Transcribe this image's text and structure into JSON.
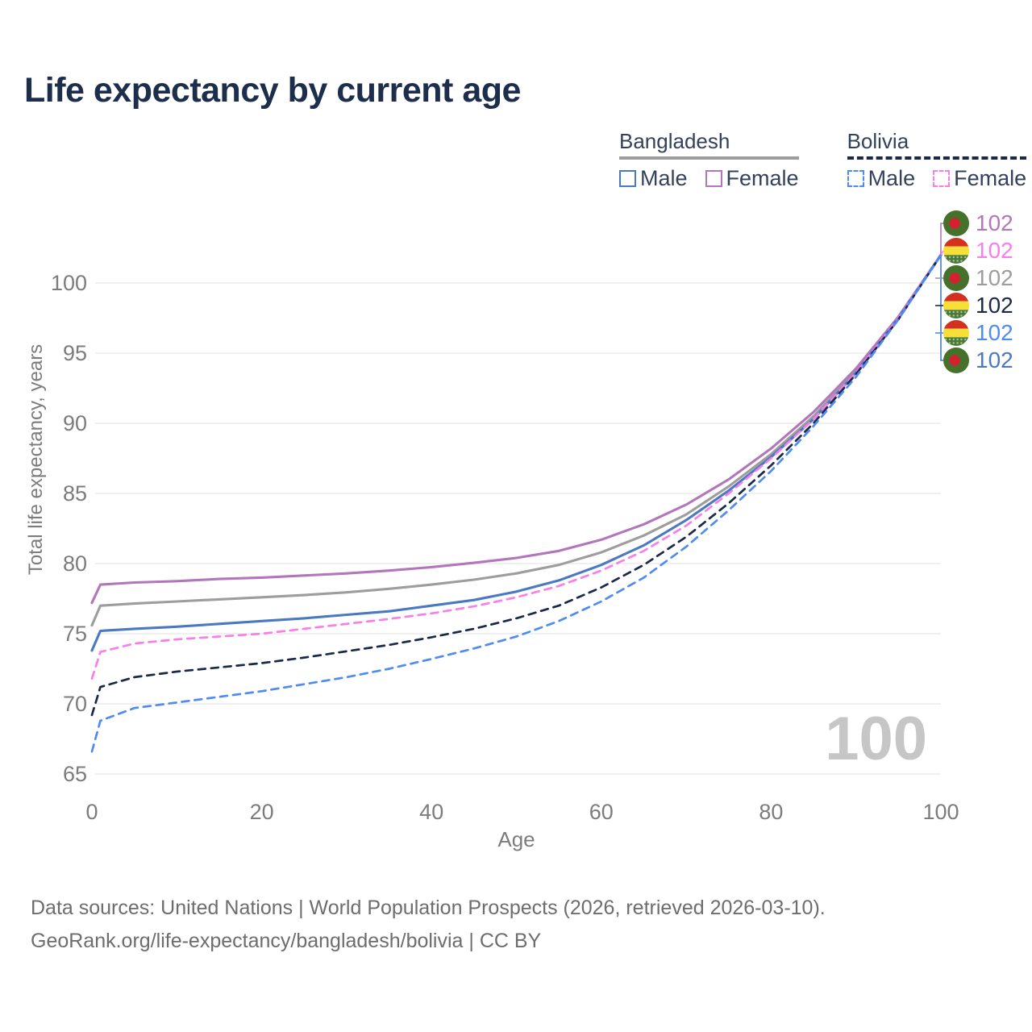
{
  "page": {
    "title": "Life expectancy by current age",
    "footer_line1": "Data sources: United Nations | World Population Prospects (2026, retrieved 2026-03-10).",
    "footer_line2": "GeoRank.org/life-expectancy/bangladesh/bolivia | CC BY"
  },
  "watermark": "100",
  "legend": {
    "groups": [
      {
        "label": "Bangladesh",
        "line_style": "solid",
        "line_color": "#9d9d9d",
        "items": [
          {
            "label": "Male",
            "color": "#4a79c2",
            "style": "solid"
          },
          {
            "label": "Female",
            "color": "#b376bc",
            "style": "solid"
          }
        ]
      },
      {
        "label": "Bolivia",
        "line_style": "dashed",
        "line_color": "#1a2947",
        "items": [
          {
            "label": "Male",
            "color": "#4e8cf2",
            "style": "dashed"
          },
          {
            "label": "Female",
            "color": "#f97ee9",
            "style": "dashed"
          }
        ]
      }
    ]
  },
  "chart_data": {
    "type": "line",
    "title": "Life expectancy by current age",
    "xlabel": "Age",
    "ylabel": "Total life expectancy, years",
    "xlim": [
      0,
      100
    ],
    "ylim": [
      65,
      102
    ],
    "xticks": [
      0,
      20,
      40,
      60,
      80,
      100
    ],
    "yticks": [
      65,
      70,
      75,
      80,
      85,
      90,
      95,
      100
    ],
    "grid": "horizontal-only",
    "legend_position": "top-right",
    "ages": [
      0,
      1,
      5,
      10,
      15,
      20,
      25,
      30,
      35,
      40,
      45,
      50,
      55,
      60,
      65,
      70,
      75,
      80,
      85,
      90,
      95,
      100
    ],
    "series": [
      {
        "name": "Bangladesh Female",
        "country": "Bangladesh",
        "sex": "Female",
        "color": "#b376bc",
        "dash": false,
        "flag": "bangladesh",
        "end_label": "102",
        "values": [
          77.2,
          78.5,
          78.65,
          78.75,
          78.9,
          79.0,
          79.15,
          79.3,
          79.5,
          79.75,
          80.05,
          80.4,
          80.9,
          81.7,
          82.8,
          84.2,
          86.0,
          88.2,
          90.8,
          93.9,
          97.6,
          102
        ]
      },
      {
        "name": "Bolivia Female",
        "country": "Bolivia",
        "sex": "Female",
        "color": "#f97ee9",
        "dash": true,
        "flag": "bolivia",
        "end_label": "102",
        "values": [
          71.8,
          73.7,
          74.3,
          74.6,
          74.8,
          75.0,
          75.35,
          75.7,
          76.05,
          76.45,
          76.95,
          77.6,
          78.4,
          79.5,
          80.9,
          82.7,
          85.0,
          87.5,
          90.3,
          93.6,
          97.5,
          102
        ]
      },
      {
        "name": "Bangladesh",
        "country": "Bangladesh",
        "sex": "Both",
        "color": "#9d9d9d",
        "dash": false,
        "flag": "bangladesh",
        "end_label": "102",
        "values": [
          75.6,
          77.0,
          77.15,
          77.3,
          77.45,
          77.6,
          77.75,
          77.95,
          78.2,
          78.5,
          78.85,
          79.3,
          79.9,
          80.8,
          82.0,
          83.5,
          85.5,
          87.8,
          90.5,
          93.7,
          97.5,
          102
        ]
      },
      {
        "name": "Bolivia",
        "country": "Bolivia",
        "sex": "Both",
        "color": "#1a2947",
        "dash": true,
        "flag": "bolivia",
        "end_label": "102",
        "values": [
          69.2,
          71.2,
          71.9,
          72.3,
          72.6,
          72.9,
          73.3,
          73.75,
          74.2,
          74.75,
          75.35,
          76.1,
          77.0,
          78.3,
          79.9,
          81.9,
          84.3,
          87.0,
          90.0,
          93.5,
          97.4,
          102
        ]
      },
      {
        "name": "Bolivia Male",
        "country": "Bolivia",
        "sex": "Male",
        "color": "#4e8cf2",
        "dash": true,
        "flag": "bolivia",
        "end_label": "102",
        "values": [
          66.6,
          68.8,
          69.7,
          70.1,
          70.5,
          70.9,
          71.4,
          71.9,
          72.5,
          73.2,
          73.95,
          74.8,
          75.9,
          77.3,
          79.0,
          81.2,
          83.8,
          86.6,
          89.8,
          93.3,
          97.4,
          102
        ]
      },
      {
        "name": "Bangladesh Male",
        "country": "Bangladesh",
        "sex": "Male",
        "color": "#4a79c2",
        "dash": false,
        "flag": "bangladesh",
        "end_label": "102",
        "values": [
          73.8,
          75.2,
          75.35,
          75.5,
          75.7,
          75.9,
          76.1,
          76.35,
          76.6,
          77.0,
          77.4,
          78.0,
          78.8,
          79.9,
          81.3,
          83.1,
          85.2,
          87.6,
          90.3,
          93.6,
          97.5,
          102
        ]
      }
    ]
  }
}
